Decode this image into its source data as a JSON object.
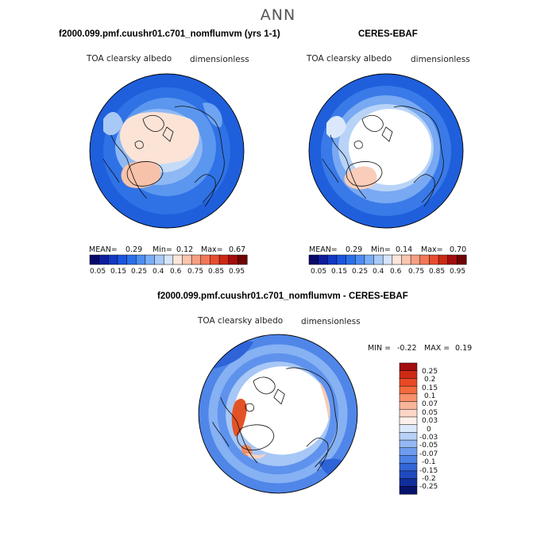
{
  "title": "ANN",
  "panels": [
    {
      "title": "f2000.099.pmf.cuushr01.c701_nomflumvm (yrs 1-1)",
      "variable": "TOA clearsky albedo",
      "units": "dimensionless",
      "mean_label": "MEAN=",
      "mean": "0.29",
      "min_label": "Min=",
      "min": "0.12",
      "max_label": "Max=",
      "max": "0.67"
    },
    {
      "title": "CERES-EBAF",
      "variable": "TOA clearsky albedo",
      "units": "dimensionless",
      "mean_label": "MEAN=",
      "mean": "0.29",
      "min_label": "Min=",
      "min": "0.14",
      "max_label": "Max=",
      "max": "0.70"
    },
    {
      "title": "f2000.099.pmf.cuushr01.c701_nomflumvm - CERES-EBAF",
      "variable": "TOA clearsky albedo",
      "units": "dimensionless",
      "min_label": "MIN =",
      "min": "-0.22",
      "max_label": "MAX =",
      "max": "0.19"
    }
  ],
  "colorbar_abs": {
    "colors": [
      "#08086b",
      "#0d1d9e",
      "#1238c4",
      "#1a55dd",
      "#2b6fe8",
      "#4d8df0",
      "#7aaef5",
      "#a9c9f8",
      "#d6e5fb",
      "#fce6dc",
      "#f9c6b0",
      "#f5a084",
      "#f07858",
      "#e74d30",
      "#cc2a14",
      "#a30d0d",
      "#6e0404"
    ],
    "labels": [
      "0.05",
      "0.15",
      "0.25",
      "0.4",
      "0.6",
      "0.75",
      "0.85",
      "0.95"
    ]
  },
  "colorbar_diff": {
    "colors": [
      "#a30d0d",
      "#cc2a14",
      "#e84a25",
      "#f36b3e",
      "#f7916b",
      "#f9b598",
      "#fcd6c6",
      "#fef0ea",
      "#dce8fb",
      "#b8d1f7",
      "#93b8f3",
      "#6d9cee",
      "#4d82e6",
      "#3266d8",
      "#1e49c0",
      "#102e9a",
      "#07126b"
    ],
    "labels": [
      "0.25",
      "0.2",
      "0.15",
      "0.1",
      "0.07",
      "0.05",
      "0.03",
      "0",
      "-0.03",
      "-0.05",
      "-0.07",
      "-0.1",
      "-0.15",
      "-0.2",
      "-0.25"
    ]
  }
}
